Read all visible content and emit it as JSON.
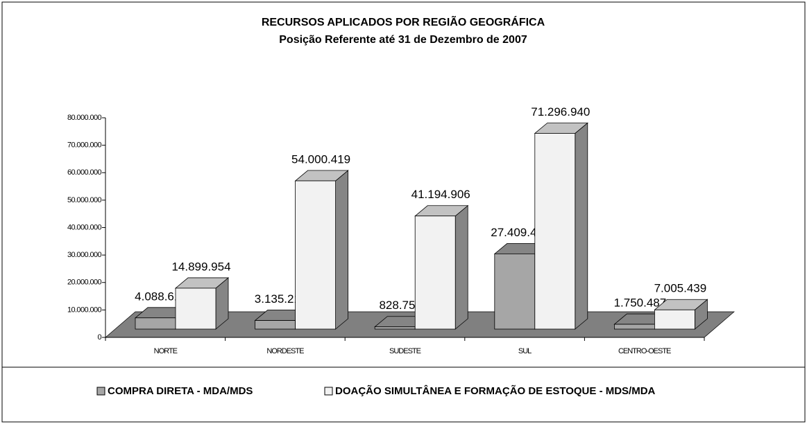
{
  "chart_data": {
    "type": "bar3d",
    "title": "RECURSOS APLICADOS POR REGIÃO GEOGRÁFICA",
    "subtitle": "Posição Referente até 31 de Dezembro de 2007",
    "categories": [
      "NORTE",
      "NORDESTE",
      "SUDESTE",
      "SUL",
      "CENTRO-OESTE"
    ],
    "series": [
      {
        "name": "COMPRA DIRETA - MDA/MDS",
        "color": "#a6a6a6",
        "values": [
          4088615,
          3135219,
          828754,
          27409425,
          1750487
        ],
        "value_labels": [
          "4.088.615",
          "3.135.219",
          "828.754",
          "27.409.425",
          "1.750.487"
        ]
      },
      {
        "name": "DOAÇÃO SIMULTÂNEA E FORMAÇÃO DE ESTOQUE - MDS/MDA",
        "color": "#f2f2f2",
        "values": [
          14899954,
          54000419,
          41194906,
          71296940,
          7005439
        ],
        "value_labels": [
          "14.899.954",
          "54.000.419",
          "41.194.906",
          "71.296.940",
          "7.005.439"
        ]
      }
    ],
    "ylim": [
      0,
      80000000
    ],
    "yticks": [
      0,
      {
        "value": 10000000,
        "label": "10.000.000"
      },
      {
        "value": 20000000,
        "label": "20.000.000"
      },
      {
        "value": 30000000,
        "label": "30.000.000"
      },
      {
        "value": 40000000,
        "label": "40.000.000"
      },
      {
        "value": 50000000,
        "label": "50.000.000"
      },
      {
        "value": 60000000,
        "label": "60.000.000"
      },
      {
        "value": 70000000,
        "label": "70.000.000"
      },
      {
        "value": 80000000,
        "label": "80.000.000"
      }
    ],
    "floor_color": "#808080"
  }
}
